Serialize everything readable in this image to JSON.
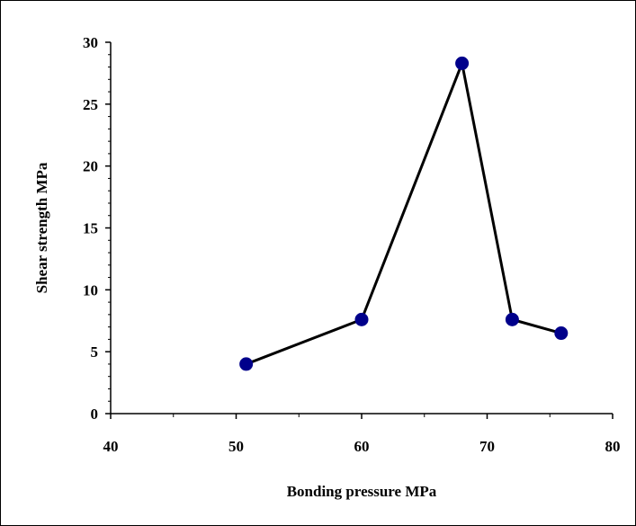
{
  "chart_data": {
    "type": "line",
    "title": "",
    "xlabel": "Bonding pressure MPa",
    "ylabel": "Shear strength MPa",
    "xlim": [
      40,
      80
    ],
    "ylim": [
      0,
      30
    ],
    "x_ticks": [
      40,
      50,
      60,
      70,
      80
    ],
    "y_ticks": [
      0,
      5,
      10,
      15,
      20,
      25,
      30
    ],
    "grid": false,
    "legend": "none",
    "series": [
      {
        "x": [
          50.8,
          60,
          68,
          72,
          75.9
        ],
        "y": [
          4.0,
          7.6,
          28.3,
          7.6,
          6.5
        ]
      }
    ],
    "colors": {
      "line": "#000000",
      "marker": "#00008B",
      "axis": "#000000"
    }
  }
}
